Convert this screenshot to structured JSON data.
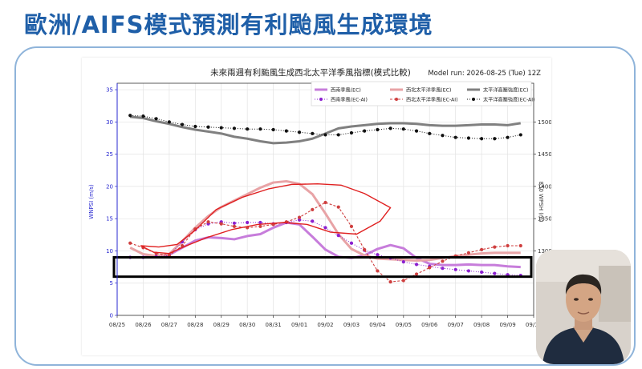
{
  "slide": {
    "title": "歐洲/AIFS模式預測有利颱風生成環境"
  },
  "chart_data": {
    "type": "line",
    "title": "未來兩週有利颱風生成西北太平洋季風指標(模式比較)",
    "subtitle": "Model run: 2026-08-25 (Tue) 12Z",
    "ylabel_left": "WNPSI (m/s)",
    "ylabel_right": "850 WPSH (m)",
    "ylim_left": [
      0,
      36
    ],
    "yticks_left": [
      0,
      5,
      10,
      15,
      20,
      25,
      30,
      35
    ],
    "ylim_right": [
      1200,
      1560
    ],
    "yticks_right": [
      1300,
      1350,
      1400,
      1450,
      1500
    ],
    "xlim": [
      0,
      16
    ],
    "xticks": [
      "08/25",
      "08/26",
      "08/27",
      "08/28",
      "08/29",
      "08/30",
      "08/31",
      "09/01",
      "09/02",
      "09/03",
      "09/04",
      "09/05",
      "09/06",
      "09/07",
      "09/08",
      "09/09",
      "09/10"
    ],
    "grid": true,
    "legend_position": "top-right",
    "legend": [
      "西南季風(EC)",
      "西北太平洋季風(EC)",
      "太平洋高壓強度(EC)",
      "西南季風(EC-AI)",
      "西北太平洋季風(EC-AI)",
      "太平洋高壓強度(EC-AI)"
    ],
    "series": [
      {
        "name": "西南季風(EC)",
        "axis": "left",
        "style": "solid",
        "color": "#c77ddb",
        "x": [
          0.5,
          1,
          1.5,
          2,
          2.5,
          3,
          3.5,
          4,
          4.5,
          5,
          5.5,
          6,
          6.5,
          7,
          7.5,
          8,
          8.5,
          9,
          9.5,
          10,
          10.5,
          11,
          11.5,
          12,
          12.5,
          13,
          13.5,
          14,
          14.5,
          15,
          15.5
        ],
        "y": [
          9,
          9,
          9.2,
          9.4,
          10.5,
          11.6,
          12.1,
          12,
          11.8,
          12.3,
          12.6,
          13.6,
          14.4,
          14.1,
          12.2,
          10.2,
          9.1,
          8.9,
          9.3,
          10.3,
          10.9,
          10.4,
          8.9,
          8,
          7.8,
          7.8,
          7.9,
          7.8,
          7.8,
          7.6,
          7.5
        ]
      },
      {
        "name": "西北太平洋季風(EC)",
        "axis": "left",
        "style": "solid",
        "color": "#e8a3a6",
        "x": [
          0.5,
          1,
          1.5,
          2,
          2.5,
          3,
          3.5,
          4,
          4.5,
          5,
          5.5,
          6,
          6.5,
          7,
          7.5,
          8,
          8.5,
          9,
          9.5,
          10,
          10.5,
          11,
          11.5,
          12,
          12.5,
          13,
          13.5,
          14,
          14.5,
          15,
          15.5
        ],
        "y": [
          10.5,
          9.5,
          9.2,
          9.5,
          11.5,
          13.6,
          15.4,
          16.8,
          17.8,
          18.8,
          19.8,
          20.6,
          20.8,
          20.4,
          18.8,
          15.8,
          12.6,
          10.3,
          9.3,
          8.8,
          8.7,
          8.6,
          8.5,
          8.6,
          8.9,
          9.2,
          9.4,
          9.6,
          9.7,
          9.7,
          9.7
        ]
      },
      {
        "name": "太平洋高壓強度(EC)",
        "axis": "right",
        "style": "solid",
        "color": "#808080",
        "x": [
          0.5,
          1,
          1.5,
          2,
          2.5,
          3,
          3.5,
          4,
          4.5,
          5,
          5.5,
          6,
          6.5,
          7,
          7.5,
          8,
          8.5,
          9,
          9.5,
          10,
          10.5,
          11,
          11.5,
          12,
          12.5,
          13,
          13.5,
          14,
          14.5,
          15,
          15.5
        ],
        "y": [
          1508,
          1506,
          1501,
          1497,
          1492,
          1488,
          1485,
          1482,
          1477,
          1474,
          1470,
          1467,
          1468,
          1470,
          1474,
          1482,
          1490,
          1493,
          1495,
          1497,
          1498,
          1498,
          1497,
          1495,
          1494,
          1494,
          1495,
          1496,
          1496,
          1495,
          1498
        ]
      },
      {
        "name": "西南季風(EC-AI)",
        "axis": "left",
        "style": "dotted-markers",
        "color": "#8b1fcf",
        "x": [
          0.5,
          1,
          1.5,
          2,
          2.5,
          3,
          3.5,
          4,
          4.5,
          5,
          5.5,
          6,
          6.5,
          7,
          7.5,
          8,
          8.5,
          9,
          9.5,
          10,
          10.5,
          11,
          11.5,
          12,
          12.5,
          13,
          13.5,
          14,
          14.5,
          15,
          15.5
        ],
        "y": [
          9,
          9,
          9.1,
          9.3,
          11.4,
          13.3,
          14.2,
          14.5,
          14.3,
          14.4,
          14.4,
          14.2,
          14.4,
          14.8,
          14.6,
          13.6,
          12.4,
          11.2,
          10.1,
          9.4,
          8.9,
          8.3,
          7.9,
          7.6,
          7.3,
          7.1,
          6.9,
          6.7,
          6.5,
          6.3,
          6.2
        ]
      },
      {
        "name": "西北太平洋季風(EC-AI)",
        "axis": "left",
        "style": "dashed-markers",
        "color": "#cf3f3f",
        "x": [
          0.5,
          1,
          1.5,
          2,
          2.5,
          3,
          3.5,
          4,
          4.5,
          5,
          5.5,
          6,
          6.5,
          7,
          7.5,
          8,
          8.5,
          9,
          9.5,
          10,
          10.5,
          11,
          11.5,
          12,
          12.5,
          13,
          13.5,
          14,
          14.5,
          15,
          15.5
        ],
        "y": [
          11.2,
          10.5,
          9.6,
          9.3,
          10.8,
          13.4,
          14.5,
          14.2,
          13.8,
          13.6,
          13.8,
          14.1,
          14.5,
          15.2,
          16.4,
          17.5,
          16.8,
          13.8,
          10.2,
          6.9,
          5.2,
          5.4,
          6.4,
          7.4,
          8.4,
          9.2,
          9.7,
          10.2,
          10.6,
          10.8,
          10.8
        ]
      },
      {
        "name": "太平洋高壓強度(EC-AI)",
        "axis": "right",
        "style": "dotted-markers",
        "color": "#111111",
        "x": [
          0.5,
          1,
          1.5,
          2,
          2.5,
          3,
          3.5,
          4,
          4.5,
          5,
          5.5,
          6,
          6.5,
          7,
          7.5,
          8,
          8.5,
          9,
          9.5,
          10,
          10.5,
          11,
          11.5,
          12,
          12.5,
          13,
          13.5,
          14,
          14.5,
          15,
          15.5
        ],
        "y": [
          1510,
          1509,
          1505,
          1500,
          1496,
          1493,
          1492,
          1491,
          1490,
          1489,
          1489,
          1488,
          1486,
          1484,
          1482,
          1480,
          1480,
          1483,
          1486,
          1488,
          1490,
          1489,
          1486,
          1482,
          1479,
          1476,
          1475,
          1474,
          1474,
          1476,
          1480
        ]
      }
    ],
    "annotations": [
      {
        "shape": "freehand-outline",
        "color": "#e02020",
        "note": "hand-drawn red outline around the peak of the EC monsoon curves"
      },
      {
        "shape": "rectangle",
        "color": "#000000",
        "y_range_left": [
          6,
          9
        ]
      }
    ]
  },
  "video": {
    "icon": "presenter-video-feed"
  }
}
